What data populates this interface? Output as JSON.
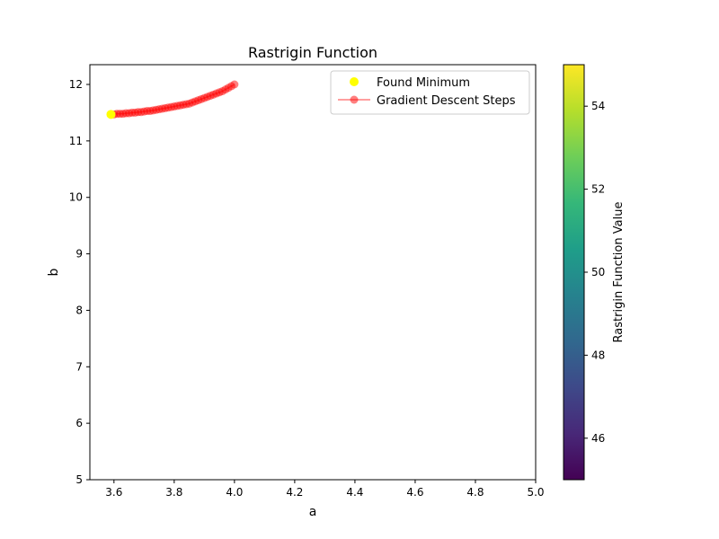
{
  "chart_data": {
    "type": "scatter",
    "title": "Rastrigin Function",
    "xlabel": "a",
    "ylabel": "b",
    "xlim": [
      3.52,
      5.0
    ],
    "ylim": [
      5.0,
      12.35
    ],
    "xticks": [
      "3.6",
      "3.8",
      "4.0",
      "4.2",
      "4.4",
      "4.6",
      "4.8",
      "5.0"
    ],
    "xtick_values": [
      3.6,
      3.8,
      4.0,
      4.2,
      4.4,
      4.6,
      4.8,
      5.0
    ],
    "yticks": [
      "5",
      "6",
      "7",
      "8",
      "9",
      "10",
      "11",
      "12"
    ],
    "ytick_values": [
      5,
      6,
      7,
      8,
      9,
      10,
      11,
      12
    ],
    "grid": false,
    "legend": {
      "placement": "top-right"
    },
    "series": [
      {
        "name": "Gradient Descent Steps",
        "type": "line-with-markers",
        "color": "#ff0000",
        "x": [
          4.0,
          3.99,
          3.98,
          3.97,
          3.96,
          3.95,
          3.94,
          3.93,
          3.92,
          3.91,
          3.9,
          3.89,
          3.88,
          3.87,
          3.86,
          3.85,
          3.84,
          3.83,
          3.82,
          3.81,
          3.8,
          3.79,
          3.78,
          3.77,
          3.76,
          3.75,
          3.74,
          3.73,
          3.72,
          3.71,
          3.7,
          3.69,
          3.68,
          3.67,
          3.66,
          3.65,
          3.64,
          3.63,
          3.62,
          3.61,
          3.6,
          3.59
        ],
        "y": [
          12.0,
          11.97,
          11.94,
          11.91,
          11.88,
          11.86,
          11.84,
          11.82,
          11.8,
          11.78,
          11.76,
          11.74,
          11.72,
          11.7,
          11.68,
          11.66,
          11.65,
          11.64,
          11.63,
          11.62,
          11.61,
          11.6,
          11.59,
          11.58,
          11.57,
          11.56,
          11.55,
          11.54,
          11.53,
          11.53,
          11.52,
          11.51,
          11.51,
          11.5,
          11.5,
          11.49,
          11.49,
          11.48,
          11.48,
          11.48,
          11.47,
          11.47
        ]
      },
      {
        "name": "Found Minimum",
        "type": "scatter",
        "color": "#ffff00",
        "x": [
          3.59
        ],
        "y": [
          11.47
        ]
      }
    ],
    "colorbar": {
      "label": "Rastrigin Function Value",
      "range": [
        45,
        55
      ],
      "ticks": [
        "46",
        "48",
        "50",
        "52",
        "54"
      ],
      "tick_values": [
        46,
        48,
        50,
        52,
        54
      ],
      "colormap": "viridis",
      "colors": [
        "#440154",
        "#482878",
        "#3e4989",
        "#31688e",
        "#26828e",
        "#1f9e89",
        "#35b779",
        "#6ece58",
        "#b5de2b",
        "#fde725"
      ]
    }
  }
}
